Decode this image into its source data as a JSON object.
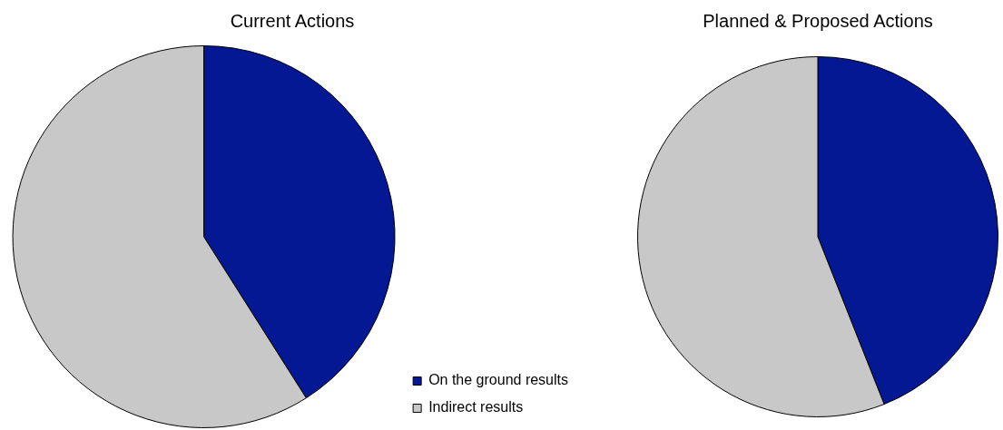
{
  "chart_data": [
    {
      "type": "pie",
      "title": "Current Actions",
      "categories": [
        "On the ground results",
        "Indirect results"
      ],
      "values": [
        41,
        59
      ],
      "colors": [
        "#041893",
        "#c8c8c8"
      ],
      "legend": "right"
    },
    {
      "type": "pie",
      "title": "Planned & Proposed Actions",
      "categories": [
        null,
        null
      ],
      "values": [
        44,
        56
      ],
      "colors": [
        "#041893",
        "#c8c8c8"
      ]
    }
  ]
}
